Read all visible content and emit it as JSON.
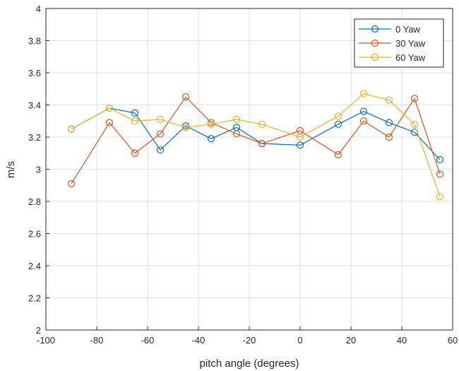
{
  "chart_data": {
    "type": "line",
    "title": "",
    "xlabel": "pitch angle (degrees)",
    "ylabel": "m/s",
    "xlim": [
      -100,
      60
    ],
    "ylim": [
      2,
      4
    ],
    "xticks": [
      -100,
      -80,
      -60,
      -40,
      -20,
      0,
      20,
      40,
      60
    ],
    "yticks": [
      2,
      2.2,
      2.4,
      2.6,
      2.8,
      3,
      3.2,
      3.4,
      3.6,
      3.8,
      4
    ],
    "grid": true,
    "legend_position": "top-right",
    "marker": "circle",
    "x": [
      -90,
      -75,
      -65,
      -55,
      -45,
      -35,
      -25,
      -15,
      0,
      15,
      25,
      35,
      45,
      55
    ],
    "series": [
      {
        "name": "0 Yaw",
        "color": "#0072BD",
        "values": [
          3.25,
          3.38,
          3.35,
          3.12,
          3.27,
          3.19,
          3.26,
          3.16,
          3.15,
          3.28,
          3.36,
          3.29,
          3.23,
          3.06
        ]
      },
      {
        "name": "30 Yaw",
        "color": "#D95319",
        "values": [
          2.91,
          3.29,
          3.1,
          3.22,
          3.45,
          3.29,
          3.22,
          3.16,
          3.24,
          3.09,
          3.3,
          3.2,
          3.44,
          2.97
        ]
      },
      {
        "name": "60 Yaw",
        "color": "#EDB120",
        "values": [
          3.25,
          3.38,
          3.3,
          3.31,
          3.26,
          3.28,
          3.31,
          3.28,
          3.2,
          3.33,
          3.47,
          3.43,
          3.28,
          2.83
        ]
      }
    ]
  }
}
